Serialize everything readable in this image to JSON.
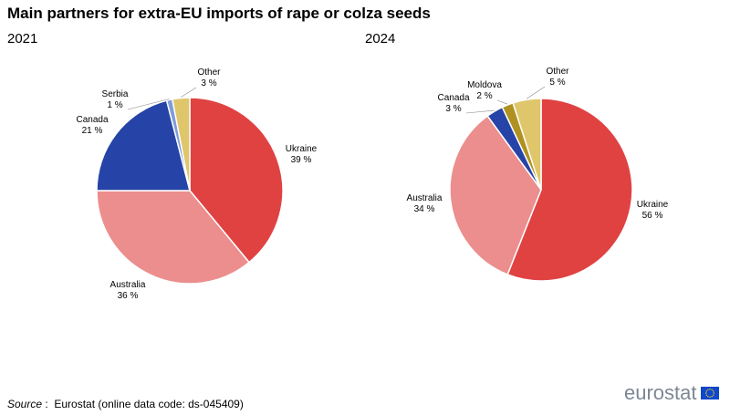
{
  "title": "Main partners for extra-EU imports of rape or colza seeds",
  "source": {
    "key": "Source",
    "sep": " :  ",
    "text": "Eurostat (online data code: ds-045409)"
  },
  "logo": {
    "word": "eurostat",
    "flag": "eu-flag-icon"
  },
  "colors": {
    "Ukraine": "#e04242",
    "Australia": "#ec8e8e",
    "Canada": "#2644a7",
    "Serbia": "#7f9ddc",
    "Moldova": "#b09120",
    "Other": "#e0c66a"
  },
  "chart_data": [
    {
      "type": "pie",
      "title": "2021",
      "slices": [
        {
          "label": "Ukraine",
          "value": 39,
          "pct_label": "39 %"
        },
        {
          "label": "Australia",
          "value": 36,
          "pct_label": "36 %"
        },
        {
          "label": "Canada",
          "value": 21,
          "pct_label": "21 %"
        },
        {
          "label": "Serbia",
          "value": 1,
          "pct_label": "1 %"
        },
        {
          "label": "Other",
          "value": 3,
          "pct_label": "3 %"
        }
      ]
    },
    {
      "type": "pie",
      "title": "2024",
      "slices": [
        {
          "label": "Ukraine",
          "value": 56,
          "pct_label": "56 %"
        },
        {
          "label": "Australia",
          "value": 34,
          "pct_label": "34 %"
        },
        {
          "label": "Canada",
          "value": 3,
          "pct_label": "3 %"
        },
        {
          "label": "Moldova",
          "value": 2,
          "pct_label": "2 %"
        },
        {
          "label": "Other",
          "value": 5,
          "pct_label": "5 %"
        }
      ]
    }
  ]
}
